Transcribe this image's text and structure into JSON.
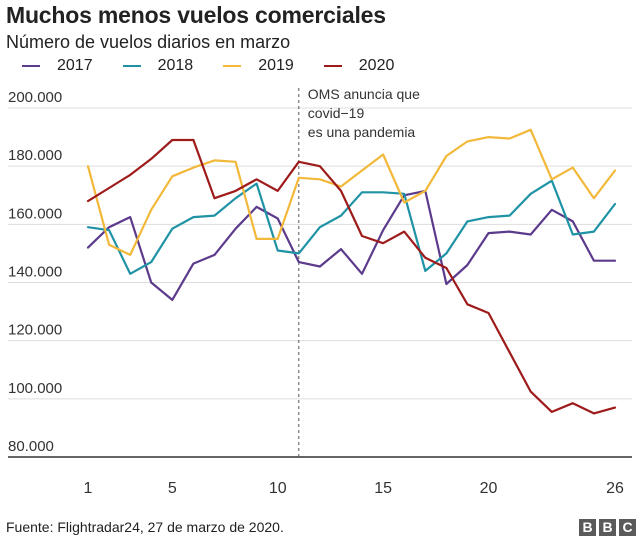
{
  "chart_data": {
    "type": "line",
    "title": "Muchos menos vuelos comerciales",
    "subtitle": "Número de vuelos diarios en marzo",
    "x": [
      1,
      2,
      3,
      4,
      5,
      6,
      7,
      8,
      9,
      10,
      11,
      12,
      13,
      14,
      15,
      16,
      17,
      18,
      19,
      20,
      21,
      22,
      23,
      24,
      25,
      26
    ],
    "xticks": [
      1,
      5,
      10,
      15,
      20,
      26
    ],
    "xlim": [
      1,
      26
    ],
    "ylim": [
      80000,
      200000
    ],
    "yticks": [
      80000,
      100000,
      120000,
      140000,
      160000,
      180000,
      200000
    ],
    "ytick_labels": [
      "80.000",
      "100.000",
      "120.000",
      "140.000",
      "160.000",
      "180.000",
      "200.000"
    ],
    "grid": "horizontal",
    "legend_position": "top",
    "series": [
      {
        "name": "2017",
        "color": "#5c3a8c",
        "values": [
          152000,
          159000,
          162500,
          140000,
          134000,
          146500,
          149500,
          158500,
          166000,
          162000,
          147000,
          145500,
          151500,
          143000,
          158000,
          170000,
          171500,
          139500,
          146000,
          157000,
          157500,
          156500,
          165000,
          161000,
          147500,
          147500
        ]
      },
      {
        "name": "2018",
        "color": "#1f93a5",
        "values": [
          159000,
          158000,
          143000,
          147000,
          158500,
          162500,
          163000,
          169000,
          174000,
          151000,
          150000,
          159000,
          163000,
          171000,
          171000,
          170500,
          144000,
          150000,
          161000,
          162500,
          163000,
          170500,
          175000,
          156500,
          157500,
          167000
        ]
      },
      {
        "name": "2019",
        "color": "#f2b83a",
        "values": [
          180000,
          153000,
          149500,
          165000,
          176500,
          179500,
          182000,
          181500,
          155000,
          155000,
          176000,
          175500,
          173000,
          178500,
          184000,
          167500,
          171500,
          183500,
          188500,
          190000,
          189500,
          192500,
          175500,
          179500,
          169000,
          178500
        ]
      },
      {
        "name": "2020",
        "color": "#9e1b1b",
        "values": [
          168000,
          172500,
          177000,
          182500,
          189000,
          189000,
          169000,
          171500,
          175500,
          171500,
          181500,
          180000,
          171500,
          156000,
          153500,
          157500,
          148500,
          145000,
          132500,
          129500,
          116000,
          102500,
          95500,
          98500,
          95000,
          97000
        ]
      }
    ],
    "annotation": {
      "x": 11,
      "lines": [
        "OMS anuncia que",
        "covid−19",
        "es una pandemia"
      ]
    }
  },
  "footer": {
    "source": "Fuente: Flightradar24, 27 de marzo de 2020.",
    "logo_letters": [
      "B",
      "B",
      "C"
    ]
  }
}
